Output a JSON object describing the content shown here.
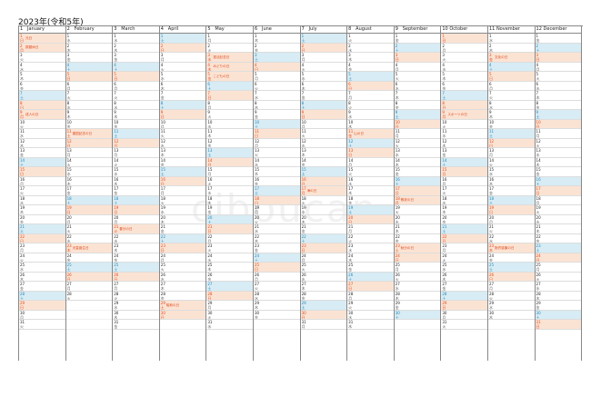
{
  "title": "2023年(令和5年)",
  "watermark": "ciboucan",
  "weekdays": [
    "日",
    "月",
    "火",
    "水",
    "木",
    "金",
    "土"
  ],
  "months": [
    {
      "num": "1",
      "name": "January",
      "days": 31,
      "start": 0
    },
    {
      "num": "2",
      "name": "February",
      "days": 28,
      "start": 3
    },
    {
      "num": "3",
      "name": "March",
      "days": 31,
      "start": 3
    },
    {
      "num": "4",
      "name": "April",
      "days": 30,
      "start": 6
    },
    {
      "num": "5",
      "name": "May",
      "days": 31,
      "start": 1
    },
    {
      "num": "6",
      "name": "June",
      "days": 30,
      "start": 4
    },
    {
      "num": "7",
      "name": "July",
      "days": 31,
      "start": 6
    },
    {
      "num": "8",
      "name": "August",
      "days": 31,
      "start": 2
    },
    {
      "num": "9",
      "name": "September",
      "days": 30,
      "start": 5
    },
    {
      "num": "10",
      "name": "October",
      "days": 31,
      "start": 0
    },
    {
      "num": "11",
      "name": "November",
      "days": 30,
      "start": 3
    },
    {
      "num": "12",
      "name": "December",
      "days": 31,
      "start": 5
    }
  ],
  "holidays": {
    "1-1": "元日",
    "1-2": "振替休日",
    "1-9": "成人の日",
    "2-11": "建国記念の日",
    "2-23": "天皇誕生日",
    "3-21": "春分の日",
    "4-29": "昭和の日",
    "5-3": "憲法記念日",
    "5-4": "みどりの日",
    "5-5": "こどもの日",
    "7-17": "海の日",
    "8-11": "山の日",
    "9-18": "敬老の日",
    "9-23": "秋分の日",
    "10-9": "スポーツの日",
    "11-3": "文化の日",
    "11-23": "勤労感謝の日"
  }
}
